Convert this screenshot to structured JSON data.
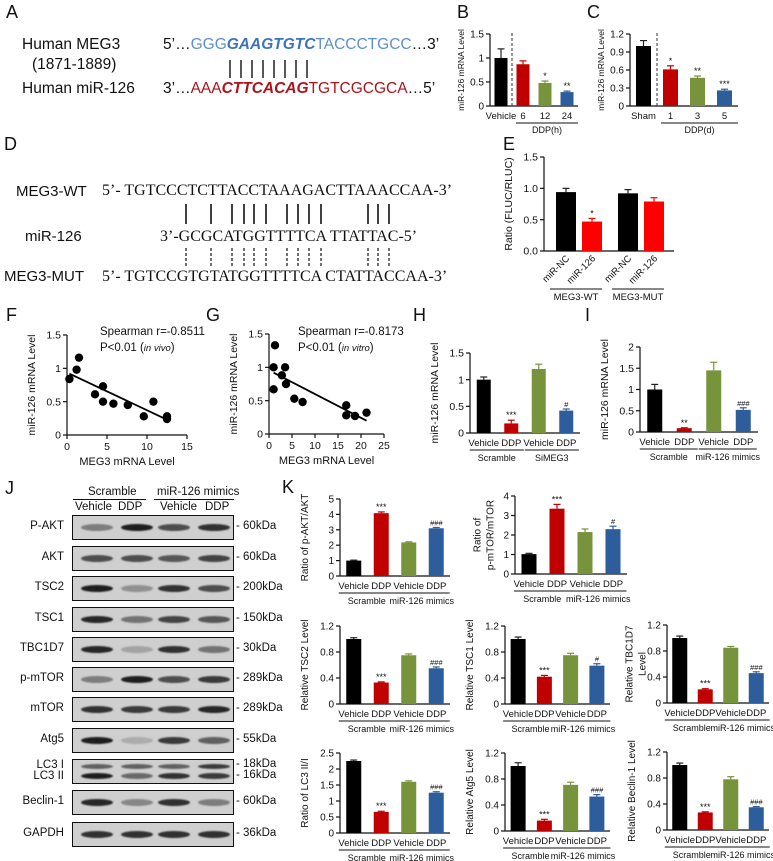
{
  "panels": {
    "A": {
      "letter": "A",
      "meg3_label": "Human MEG3",
      "meg3_range": "(1871-1889)",
      "meg3_prefix": "5’…",
      "meg3_seq_pre": "GGG",
      "meg3_seq_seed": "GAAGTGTC",
      "meg3_seq_post": "TACCCTGCC",
      "meg3_suffix": "…3’",
      "mir_label": "Human miR-126",
      "mir_prefix": "3’…",
      "mir_seq_pre": "AAA",
      "mir_seq_seed": "CTTCACAG",
      "mir_seq_post": "TGTCGCGCA",
      "mir_suffix": "…5’",
      "pair_bars": 8,
      "colors": {
        "meg3": "#5b8fd0",
        "mir": "#b0121b"
      }
    },
    "D": {
      "letter": "D",
      "wt_label": "MEG3-WT",
      "wt_seq": "5’- TGTCCCTCTTACCTAAAGACTTAAACCAA-3’",
      "mir_label": "miR-126",
      "mir_seq": "3’-GCGCATGGTTTTCA TTATTAC-5’",
      "mut_label": "MEG3-MUT",
      "mut_seq": "5’- TGTCCGTGTATGGTTTTCA CTATTACCAA-3’"
    },
    "F": {
      "letter": "F",
      "stat1": "Spearman r=-0.8511",
      "stat2_prefix": "P<0.01 (",
      "stat2_italic": "in vivo",
      "stat2_suffix": ")"
    },
    "G": {
      "letter": "G",
      "stat1": "Spearman r=-0.8173",
      "stat2_prefix": "P<0.01 (",
      "stat2_italic": "in vitro",
      "stat2_suffix": ")"
    },
    "J": {
      "letter": "J",
      "group1": "Scramble",
      "group2": "miR-126 mimics",
      "lanes": [
        "Vehicle",
        "DDP",
        "Vehicle",
        "DDP"
      ],
      "blots": [
        {
          "protein": "P-AKT",
          "mw": "60kDa",
          "bands": [
            0.45,
            0.95,
            0.7,
            0.85
          ]
        },
        {
          "protein": "AKT",
          "mw": "60kDa",
          "bands": [
            0.7,
            0.7,
            0.65,
            0.75
          ]
        },
        {
          "protein": "TSC2",
          "mw": "200kDa",
          "bands": [
            0.95,
            0.35,
            0.85,
            0.7
          ]
        },
        {
          "protein": "TSC1",
          "mw": "150kDa",
          "bands": [
            0.9,
            0.5,
            0.75,
            0.65
          ]
        },
        {
          "protein": "TBC1D7",
          "mw": "30kDa",
          "bands": [
            0.9,
            0.25,
            0.85,
            0.5
          ]
        },
        {
          "protein": "p-mTOR",
          "mw": "289kDa",
          "bands": [
            0.45,
            0.95,
            0.7,
            0.8
          ]
        },
        {
          "protein": "mTOR",
          "mw": "289kDa",
          "bands": [
            0.85,
            0.8,
            0.8,
            0.9
          ]
        },
        {
          "protein": "Atg5",
          "mw": "55kDa",
          "bands": [
            0.95,
            0.2,
            0.8,
            0.6
          ]
        },
        {
          "protein": "LC3 I",
          "protein2": "LC3 II",
          "mw": "18kDa",
          "mw2": "16kDa",
          "bands": [
            0.6,
            0.6,
            0.6,
            0.8
          ],
          "bands2": [
            0.95,
            0.55,
            0.85,
            0.8
          ]
        },
        {
          "protein": "Beclin-1",
          "mw": "60kDa",
          "bands": [
            0.9,
            0.4,
            0.85,
            0.45
          ]
        },
        {
          "protein": "GAPDH",
          "mw": "36kDa",
          "bands": [
            0.85,
            0.85,
            0.85,
            0.85
          ]
        }
      ]
    },
    "K": {
      "letter": "K"
    }
  },
  "chart_data": [
    {
      "id": "B",
      "type": "bar",
      "title": "",
      "categories": [
        "Vehicle",
        "6",
        "12",
        "24"
      ],
      "group_label": "DDP(h)",
      "values": [
        1.0,
        0.87,
        0.48,
        0.29
      ],
      "errors": [
        0.19,
        0.07,
        0.04,
        0.02
      ],
      "significance": [
        "",
        "",
        "*",
        "**"
      ],
      "colors": [
        "#000000",
        "#c00000",
        "#77933c",
        "#2e5d9b"
      ],
      "ylabel": "miR-126 mRNA Level",
      "ylim": [
        0,
        1.5
      ],
      "yticks": [
        0,
        0.5,
        1,
        1.5
      ],
      "yticklabels": [
        "0",
        "0.5",
        "1",
        "1.5"
      ]
    },
    {
      "id": "C",
      "type": "bar",
      "title": "",
      "categories": [
        "Sham",
        "1",
        "3",
        "5"
      ],
      "group_label": "DDP(d)",
      "values": [
        1.0,
        0.61,
        0.47,
        0.26
      ],
      "errors": [
        0.09,
        0.06,
        0.03,
        0.02
      ],
      "significance": [
        "",
        "*",
        "**",
        "***"
      ],
      "colors": [
        "#000000",
        "#c00000",
        "#77933c",
        "#2e5d9b"
      ],
      "ylabel": "miR-126 mRNA Level",
      "ylim": [
        0,
        1.2
      ],
      "yticks": [
        0,
        0.3,
        0.6,
        0.9,
        1.2
      ],
      "yticklabels": [
        "0",
        "0.3",
        "0.6",
        "0.9",
        "1.2"
      ]
    },
    {
      "id": "E",
      "type": "bar",
      "title": "",
      "categories": [
        "miR-NC",
        "miR-126",
        "miR-NC",
        "miR-126"
      ],
      "groups": [
        "MEG3-WT",
        "MEG3-MUT"
      ],
      "values": [
        0.94,
        0.47,
        0.92,
        0.79
      ],
      "errors": [
        0.06,
        0.05,
        0.06,
        0.06
      ],
      "significance": [
        "",
        "*",
        "",
        ""
      ],
      "colors": [
        "#000000",
        "#ff0000",
        "#000000",
        "#ff0000"
      ],
      "ylabel": "Ratio (FLUC/RLUC)",
      "ylim": [
        0,
        1.5
      ],
      "yticks": [
        0,
        0.5,
        1.0,
        1.5
      ],
      "yticklabels": [
        "0.0",
        "0.5",
        "1.0",
        "1.5"
      ]
    },
    {
      "id": "F",
      "type": "scatter",
      "x": [
        0.3,
        1.2,
        1.5,
        3.5,
        4.5,
        4.5,
        5.8,
        7.6,
        9.6,
        10.8,
        12.5,
        12.5
      ],
      "y": [
        0.84,
        0.98,
        1.16,
        0.61,
        0.73,
        0.5,
        0.47,
        0.45,
        0.28,
        0.5,
        0.28,
        0.24
      ],
      "fit": {
        "x": [
          0.3,
          12.5
        ],
        "y": [
          0.92,
          0.23
        ]
      },
      "xlabel": "MEG3 mRNA Level",
      "ylabel": "miR-126 mRNA Level",
      "xlim": [
        0,
        15
      ],
      "ylim": [
        0,
        1.5
      ],
      "xticks": [
        0,
        5,
        10,
        15
      ],
      "yticks": [
        0,
        0.5,
        1,
        1.5
      ],
      "yticklabels": [
        "0",
        "0.5",
        "1",
        "1.5"
      ],
      "annotations": [
        "Spearman r=-0.8511",
        "P<0.01 (in vivo)"
      ]
    },
    {
      "id": "G",
      "type": "scatter",
      "x": [
        1,
        1,
        1.3,
        2.8,
        3.5,
        3.7,
        5.5,
        7.3,
        16.8,
        16.8,
        18.7,
        21.2
      ],
      "y": [
        0.67,
        1.0,
        1.33,
        0.88,
        1.0,
        0.75,
        0.53,
        0.48,
        0.43,
        0.28,
        0.27,
        0.32
      ],
      "fit": {
        "x": [
          1,
          21.2
        ],
        "y": [
          0.92,
          0.2
        ]
      },
      "xlabel": "MEG3 mRNA Level",
      "ylabel": "miR-126 mRNA Level",
      "xlim": [
        0,
        25
      ],
      "ylim": [
        0,
        1.5
      ],
      "xticks": [
        0,
        5,
        10,
        15,
        20,
        25
      ],
      "yticks": [
        0,
        0.5,
        1,
        1.5
      ],
      "yticklabels": [
        "0",
        "0.5",
        "1",
        "1.5"
      ],
      "annotations": [
        "Spearman r=-0.8173",
        "P<0.01 (in vitro)"
      ]
    },
    {
      "id": "H",
      "type": "bar",
      "categories": [
        "Vehicle",
        "DDP",
        "Vehicle",
        "DDP"
      ],
      "groups": [
        "Scramble",
        "SiMEG3"
      ],
      "values": [
        1.0,
        0.18,
        1.2,
        0.42
      ],
      "errors": [
        0.05,
        0.06,
        0.09,
        0.03
      ],
      "significance": [
        "",
        "***",
        "",
        "#"
      ],
      "colors": [
        "#000000",
        "#c00000",
        "#77933c",
        "#2e5d9b"
      ],
      "ylabel": "miR-126 mRNA Level",
      "ylim": [
        0,
        1.5
      ],
      "yticks": [
        0,
        0.5,
        1,
        1.5
      ],
      "yticklabels": [
        "0",
        "0.5",
        "1",
        "1.5"
      ]
    },
    {
      "id": "I",
      "type": "bar",
      "categories": [
        "Vehicle",
        "DDP",
        "Vehicle",
        "DDP"
      ],
      "groups": [
        "Scramble",
        "miR-126 mimics"
      ],
      "values": [
        1.0,
        0.09,
        1.45,
        0.52
      ],
      "errors": [
        0.12,
        0.01,
        0.19,
        0.05
      ],
      "significance": [
        "",
        "**",
        "",
        "###"
      ],
      "colors": [
        "#000000",
        "#c00000",
        "#77933c",
        "#2e5d9b"
      ],
      "ylabel": "miR-126 mRNA Level",
      "ylim": [
        0,
        2
      ],
      "yticks": [
        0,
        0.5,
        1,
        1.5,
        2
      ],
      "yticklabels": [
        "0",
        "0.5",
        "1",
        "1.5",
        "2"
      ]
    },
    {
      "id": "K1",
      "type": "bar",
      "categories": [
        "Vehicle",
        "DDP",
        "Vehicle",
        "DDP"
      ],
      "groups": [
        "Scramble",
        "miR-126 mimics"
      ],
      "values": [
        1.0,
        4.08,
        2.18,
        3.1
      ],
      "errors": [
        0.03,
        0.08,
        0.04,
        0.05
      ],
      "significance": [
        "",
        "***",
        "",
        "###"
      ],
      "colors": [
        "#000000",
        "#c00000",
        "#77933c",
        "#2e5d9b"
      ],
      "ylabel": "Ratio of p-AKT/AKT",
      "ylim": [
        0,
        5
      ],
      "yticks": [
        0,
        1,
        2,
        3,
        4,
        5
      ],
      "yticklabels": [
        "0",
        "1",
        "2",
        "3",
        "4",
        "5"
      ]
    },
    {
      "id": "K2",
      "type": "bar",
      "categories": [
        "Vehicle",
        "DDP",
        "Vehicle",
        "DDP"
      ],
      "groups": [
        "Scramble",
        "miR-126 mimics"
      ],
      "values": [
        1.02,
        3.35,
        2.15,
        2.3
      ],
      "errors": [
        0.04,
        0.22,
        0.16,
        0.15
      ],
      "significance": [
        "",
        "***",
        "",
        "#"
      ],
      "colors": [
        "#000000",
        "#c00000",
        "#77933c",
        "#2e5d9b"
      ],
      "ylabel": "Ratio of p-mTOR/mTOR",
      "ylabel_lines": [
        "Ratio of",
        "p-mTOR/mTOR"
      ],
      "ylim": [
        0,
        4
      ],
      "yticks": [
        0,
        1,
        2,
        3,
        4
      ],
      "yticklabels": [
        "0",
        "1",
        "2",
        "3",
        "4"
      ]
    },
    {
      "id": "K3",
      "type": "bar",
      "categories": [
        "Vehicle",
        "DDP",
        "Vehicle",
        "DDP"
      ],
      "groups": [
        "Scramble",
        "miR-126 mimics"
      ],
      "values": [
        1.0,
        0.33,
        0.75,
        0.55
      ],
      "errors": [
        0.02,
        0.01,
        0.02,
        0.02
      ],
      "significance": [
        "",
        "***",
        "",
        "###"
      ],
      "colors": [
        "#000000",
        "#c00000",
        "#77933c",
        "#2e5d9b"
      ],
      "ylabel": "Relative TSC2 Level",
      "ylim": [
        0,
        1.2
      ],
      "yticks": [
        0,
        0.4,
        0.8,
        1.2
      ],
      "yticklabels": [
        "0",
        "0.4",
        "0.8",
        "1.2"
      ]
    },
    {
      "id": "K4",
      "type": "bar",
      "categories": [
        "Vehicle",
        "DDP",
        "Vehicle",
        "DDP"
      ],
      "groups": [
        "Scramble",
        "miR-126 mimics"
      ],
      "values": [
        1.0,
        0.42,
        0.75,
        0.59
      ],
      "errors": [
        0.03,
        0.02,
        0.03,
        0.03
      ],
      "significance": [
        "",
        "***",
        "",
        "#"
      ],
      "colors": [
        "#000000",
        "#c00000",
        "#77933c",
        "#2e5d9b"
      ],
      "ylabel": "Relative TSC1 Level",
      "ylim": [
        0,
        1.2
      ],
      "yticks": [
        0,
        0.4,
        0.8,
        1.2
      ],
      "yticklabels": [
        "0",
        "0.4",
        "0.8",
        "1.2"
      ]
    },
    {
      "id": "K5",
      "type": "bar",
      "categories": [
        "Vehicle",
        "DDP",
        "Vehicle",
        "DDP"
      ],
      "groups": [
        "Scramble",
        "miR-126 mimics"
      ],
      "values": [
        1.0,
        0.21,
        0.85,
        0.46
      ],
      "errors": [
        0.03,
        0.01,
        0.02,
        0.02
      ],
      "significance": [
        "",
        "***",
        "",
        "###"
      ],
      "colors": [
        "#000000",
        "#c00000",
        "#77933c",
        "#2e5d9b"
      ],
      "ylabel": "Relative TBC1D7 Level",
      "ylabel_lines": [
        "Relative TBC1D7",
        "Level"
      ],
      "ylim": [
        0,
        1.2
      ],
      "yticks": [
        0,
        0.4,
        0.8,
        1.2
      ],
      "yticklabels": [
        "0",
        "0.4",
        "0.8",
        "1.2"
      ]
    },
    {
      "id": "K6",
      "type": "bar",
      "categories": [
        "Vehicle",
        "DDP",
        "Vehicle",
        "DDP"
      ],
      "groups": [
        "Scramble",
        "miR-126 mimics"
      ],
      "values": [
        2.25,
        0.66,
        1.6,
        1.26
      ],
      "errors": [
        0.03,
        0.02,
        0.03,
        0.03
      ],
      "significance": [
        "",
        "***",
        "",
        "###"
      ],
      "colors": [
        "#000000",
        "#c00000",
        "#77933c",
        "#2e5d9b"
      ],
      "ylabel": "Ratio of LC3 II/I",
      "ylim": [
        0,
        2.5
      ],
      "yticks": [
        0,
        0.5,
        1,
        1.5,
        2,
        2.5
      ],
      "yticklabels": [
        "0",
        "0.5",
        "1",
        "1.5",
        "2",
        "2.5"
      ]
    },
    {
      "id": "K7",
      "type": "bar",
      "categories": [
        "Vehicle",
        "DDP",
        "Vehicle",
        "DDP"
      ],
      "groups": [
        "Scramble",
        "miR-126 mimics"
      ],
      "values": [
        1.0,
        0.16,
        0.71,
        0.53
      ],
      "errors": [
        0.05,
        0.02,
        0.04,
        0.03
      ],
      "significance": [
        "",
        "***",
        "",
        "###"
      ],
      "colors": [
        "#000000",
        "#c00000",
        "#77933c",
        "#2e5d9b"
      ],
      "ylabel": "Relative Atg5 Level",
      "ylim": [
        0,
        1.2
      ],
      "yticks": [
        0,
        0.4,
        0.8,
        1.2
      ],
      "yticklabels": [
        "0",
        "0.4",
        "0.8",
        "1.2"
      ]
    },
    {
      "id": "K8",
      "type": "bar",
      "categories": [
        "Vehicle",
        "DDP",
        "Vehicle",
        "DDP"
      ],
      "groups": [
        "Scramble",
        "miR-126 mimics"
      ],
      "values": [
        1.0,
        0.27,
        0.78,
        0.35
      ],
      "errors": [
        0.03,
        0.01,
        0.04,
        0.01
      ],
      "significance": [
        "",
        "***",
        "",
        "###"
      ],
      "colors": [
        "#000000",
        "#c00000",
        "#77933c",
        "#2e5d9b"
      ],
      "ylabel": "Relative Beclin-1 Level",
      "ylim": [
        0,
        1.2
      ],
      "yticks": [
        0,
        0.4,
        0.8,
        1.2
      ],
      "yticklabels": [
        "0",
        "0.4",
        "0.8",
        "1.2"
      ]
    }
  ]
}
